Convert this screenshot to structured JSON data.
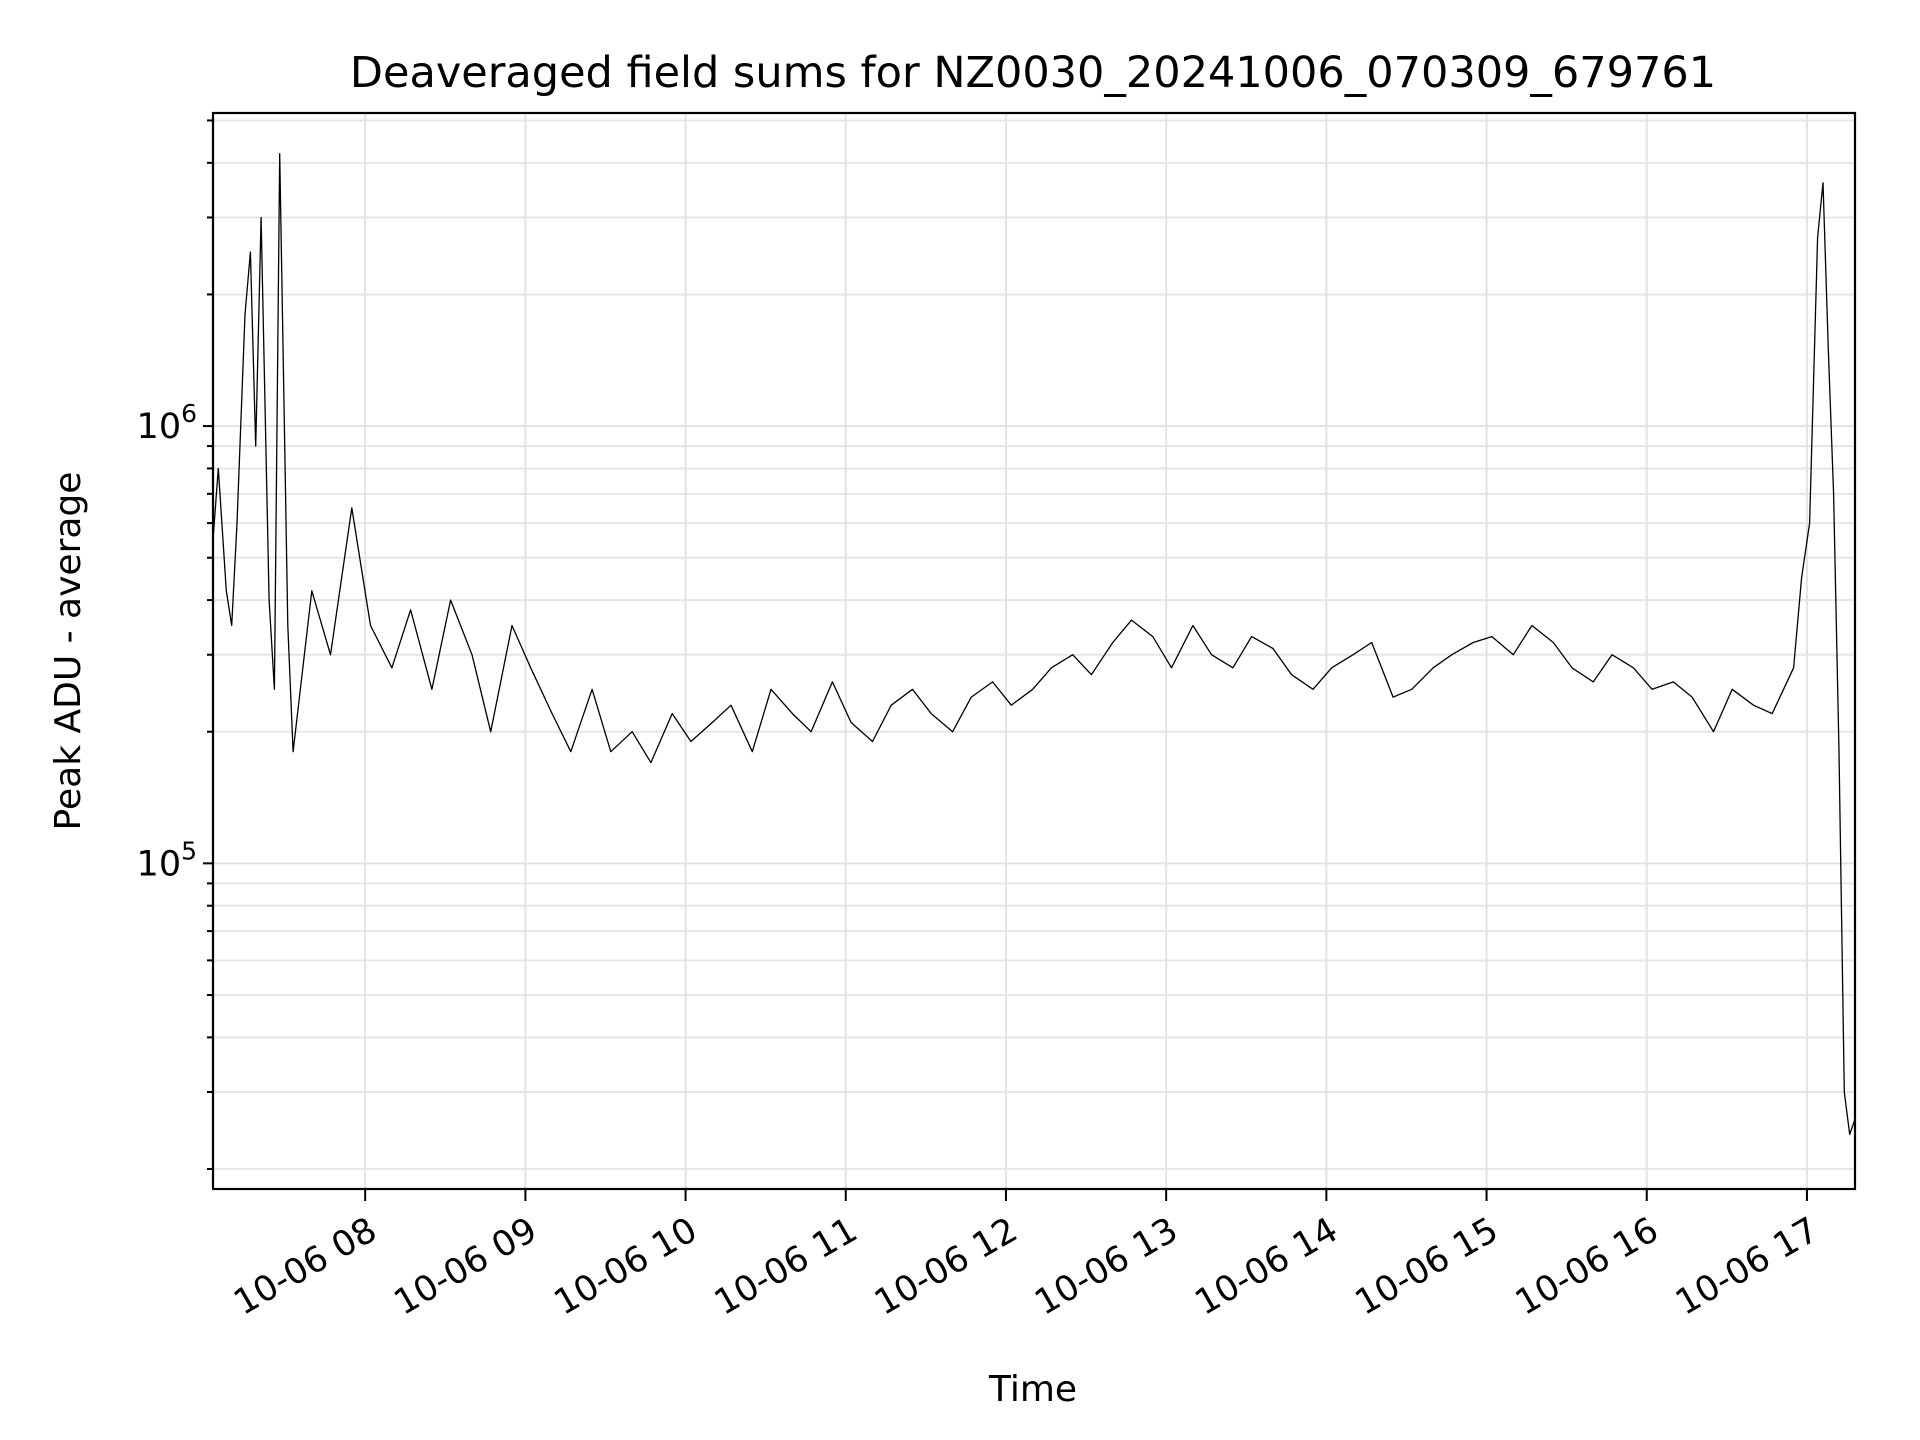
{
  "chart_data": {
    "type": "line",
    "title": "Deaveraged field sums for NZ0030_20241006_070309_679761",
    "xlabel": "Time",
    "ylabel": "Peak ADU - average",
    "yscale": "log",
    "grid": true,
    "xlim": [
      "2024-10-06 07:03",
      "2024-10-06 17:18"
    ],
    "ylim": [
      18000,
      5200000
    ],
    "x_ticks": [
      "10-06 08",
      "10-06 09",
      "10-06 10",
      "10-06 11",
      "10-06 12",
      "10-06 13",
      "10-06 14",
      "10-06 15",
      "10-06 16",
      "10-06 17"
    ],
    "y_ticks": [
      {
        "value": 100000,
        "base": "10",
        "exp": "5"
      },
      {
        "value": 1000000,
        "base": "10",
        "exp": "6"
      }
    ],
    "series": [
      {
        "color": "#000000",
        "x": [
          "2024-10-06 07:03",
          "2024-10-06 07:05",
          "2024-10-06 07:08",
          "2024-10-06 07:10",
          "2024-10-06 07:12",
          "2024-10-06 07:15",
          "2024-10-06 07:17",
          "2024-10-06 07:19",
          "2024-10-06 07:21",
          "2024-10-06 07:24",
          "2024-10-06 07:26",
          "2024-10-06 07:28",
          "2024-10-06 07:31",
          "2024-10-06 07:33",
          "2024-10-06 07:40",
          "2024-10-06 07:47",
          "2024-10-06 07:55",
          "2024-10-06 08:02",
          "2024-10-06 08:10",
          "2024-10-06 08:17",
          "2024-10-06 08:25",
          "2024-10-06 08:32",
          "2024-10-06 08:40",
          "2024-10-06 08:47",
          "2024-10-06 08:55",
          "2024-10-06 09:02",
          "2024-10-06 09:10",
          "2024-10-06 09:17",
          "2024-10-06 09:25",
          "2024-10-06 09:32",
          "2024-10-06 09:40",
          "2024-10-06 09:47",
          "2024-10-06 09:55",
          "2024-10-06 10:02",
          "2024-10-06 10:10",
          "2024-10-06 10:17",
          "2024-10-06 10:25",
          "2024-10-06 10:32",
          "2024-10-06 10:40",
          "2024-10-06 10:47",
          "2024-10-06 10:55",
          "2024-10-06 11:02",
          "2024-10-06 11:10",
          "2024-10-06 11:17",
          "2024-10-06 11:25",
          "2024-10-06 11:32",
          "2024-10-06 11:40",
          "2024-10-06 11:47",
          "2024-10-06 11:55",
          "2024-10-06 12:02",
          "2024-10-06 12:10",
          "2024-10-06 12:17",
          "2024-10-06 12:25",
          "2024-10-06 12:32",
          "2024-10-06 12:40",
          "2024-10-06 12:47",
          "2024-10-06 12:55",
          "2024-10-06 13:02",
          "2024-10-06 13:10",
          "2024-10-06 13:17",
          "2024-10-06 13:25",
          "2024-10-06 13:32",
          "2024-10-06 13:40",
          "2024-10-06 13:47",
          "2024-10-06 13:55",
          "2024-10-06 14:02",
          "2024-10-06 14:10",
          "2024-10-06 14:17",
          "2024-10-06 14:25",
          "2024-10-06 14:32",
          "2024-10-06 14:40",
          "2024-10-06 14:47",
          "2024-10-06 14:55",
          "2024-10-06 15:02",
          "2024-10-06 15:10",
          "2024-10-06 15:17",
          "2024-10-06 15:25",
          "2024-10-06 15:32",
          "2024-10-06 15:40",
          "2024-10-06 15:47",
          "2024-10-06 15:55",
          "2024-10-06 16:02",
          "2024-10-06 16:10",
          "2024-10-06 16:17",
          "2024-10-06 16:25",
          "2024-10-06 16:32",
          "2024-10-06 16:40",
          "2024-10-06 16:47",
          "2024-10-06 16:55",
          "2024-10-06 16:58",
          "2024-10-06 17:01",
          "2024-10-06 17:04",
          "2024-10-06 17:06",
          "2024-10-06 17:08",
          "2024-10-06 17:10",
          "2024-10-06 17:12",
          "2024-10-06 17:14",
          "2024-10-06 17:16",
          "2024-10-06 17:18"
        ],
        "y": [
          550000,
          800000,
          420000,
          350000,
          600000,
          1800000,
          2500000,
          900000,
          3000000,
          400000,
          250000,
          4200000,
          350000,
          180000,
          420000,
          300000,
          650000,
          350000,
          280000,
          380000,
          250000,
          400000,
          300000,
          200000,
          350000,
          280000,
          220000,
          180000,
          250000,
          180000,
          200000,
          170000,
          220000,
          190000,
          210000,
          230000,
          180000,
          250000,
          220000,
          200000,
          260000,
          210000,
          190000,
          230000,
          250000,
          220000,
          200000,
          240000,
          260000,
          230000,
          250000,
          280000,
          300000,
          270000,
          320000,
          360000,
          330000,
          280000,
          350000,
          300000,
          280000,
          330000,
          310000,
          270000,
          250000,
          280000,
          300000,
          320000,
          240000,
          250000,
          280000,
          300000,
          320000,
          330000,
          300000,
          350000,
          320000,
          280000,
          260000,
          300000,
          280000,
          250000,
          260000,
          240000,
          200000,
          250000,
          230000,
          220000,
          280000,
          450000,
          600000,
          2700000,
          3600000,
          1500000,
          700000,
          180000,
          30000,
          24000,
          26000
        ]
      }
    ]
  }
}
